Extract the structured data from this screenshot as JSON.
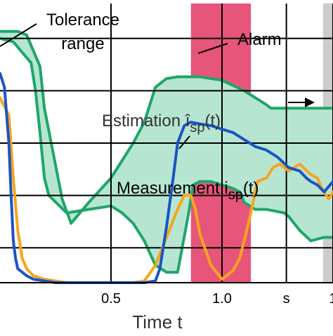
{
  "chart_data": {
    "type": "line",
    "title": "",
    "xlabel": "Time t",
    "ylabel": "",
    "xlim": [
      0.0,
      1.5
    ],
    "ylim": [
      0,
      8
    ],
    "x_ticks": [
      {
        "value": 0.5,
        "label": "0.5"
      },
      {
        "value": 1.0,
        "label": "1.0"
      },
      {
        "value": 1.29,
        "label": "s"
      },
      {
        "value": 1.5,
        "label": "1"
      }
    ],
    "grid": true,
    "highlights": [
      {
        "name": "alarm",
        "x0": 0.86,
        "x1": 1.13,
        "color": "#e8557a"
      },
      {
        "name": "gray-region",
        "x0": 1.455,
        "x1": 1.52,
        "color": "#cccccc"
      }
    ],
    "annotations": [
      {
        "name": "tolerance",
        "text": "Tolerance",
        "line2": "range"
      },
      {
        "name": "alarm",
        "text": "Alarm"
      },
      {
        "name": "estimation",
        "text": "Estimation î",
        "subscript": "sp",
        "suffix": "(t)"
      },
      {
        "name": "measurement",
        "text": "Measurement i",
        "subscript": "sp",
        "suffix": "(t)"
      }
    ],
    "tolerance_band": {
      "upper": {
        "x": [
          0.0,
          0.08,
          0.12,
          0.18,
          0.2,
          0.24,
          0.28,
          0.32,
          0.4,
          0.5,
          0.6,
          0.65,
          0.7,
          0.75,
          0.8,
          0.9,
          1.0,
          1.1,
          1.2,
          1.22,
          1.3,
          1.4,
          1.46,
          1.5
        ],
        "y": [
          7.2,
          7.2,
          7.1,
          6.2,
          5.0,
          3.7,
          2.4,
          1.7,
          2.3,
          3.0,
          4.0,
          4.6,
          5.6,
          5.85,
          5.9,
          5.9,
          5.8,
          5.5,
          5.1,
          5.0,
          5.0,
          5.0,
          5.0,
          5.0
        ]
      },
      "lower": {
        "x": [
          0.0,
          0.06,
          0.1,
          0.14,
          0.16,
          0.18,
          0.2,
          0.22,
          0.3,
          0.4,
          0.5,
          0.55,
          0.6,
          0.65,
          0.7,
          0.75,
          0.8,
          0.85,
          0.87,
          0.9,
          0.95,
          1.0,
          1.05,
          1.08,
          1.1,
          1.15,
          1.2,
          1.28,
          1.3,
          1.35,
          1.4,
          1.46,
          1.5
        ],
        "y": [
          7.0,
          6.9,
          6.6,
          6.3,
          5.5,
          4.3,
          3.0,
          2.5,
          2.0,
          2.1,
          2.2,
          2.0,
          1.7,
          1.2,
          0.5,
          0.3,
          0.3,
          2.0,
          2.8,
          2.9,
          2.9,
          2.8,
          2.7,
          2.6,
          2.3,
          2.1,
          2.1,
          2.0,
          1.9,
          1.5,
          1.2,
          1.3,
          1.3
        ]
      }
    },
    "series": [
      {
        "key": "estimation",
        "x": [
          0.0,
          0.02,
          0.04,
          0.05,
          0.06,
          0.07,
          0.08,
          0.1,
          0.12,
          0.15,
          0.2,
          0.25,
          0.3,
          0.35,
          0.4,
          0.45,
          0.5,
          0.55,
          0.6,
          0.65,
          0.7,
          0.72,
          0.75,
          0.78,
          0.8,
          0.83,
          0.86,
          0.9,
          0.95,
          1.0,
          1.05,
          1.1,
          1.15,
          1.2,
          1.25,
          1.3,
          1.35,
          1.38,
          1.4,
          1.43,
          1.46,
          1.5
        ],
        "y": [
          6.0,
          5.6,
          4.0,
          2.5,
          1.2,
          0.7,
          0.4,
          0.3,
          0.2,
          0.1,
          0.05,
          0.0,
          0.0,
          0.0,
          0.0,
          0.0,
          0.0,
          0.0,
          0.0,
          0.0,
          0.05,
          0.4,
          1.6,
          3.0,
          4.0,
          4.5,
          4.6,
          4.55,
          4.5,
          4.4,
          4.3,
          4.1,
          3.9,
          3.8,
          3.6,
          3.3,
          3.2,
          3.0,
          2.9,
          2.8,
          2.6,
          2.9
        ]
      },
      {
        "key": "measurement",
        "x": [
          0.0,
          0.04,
          0.06,
          0.08,
          0.1,
          0.12,
          0.15,
          0.2,
          0.25,
          0.3,
          0.35,
          0.4,
          0.45,
          0.5,
          0.55,
          0.6,
          0.65,
          0.7,
          0.75,
          0.8,
          0.83,
          0.86,
          0.88,
          0.9,
          0.95,
          1.0,
          1.05,
          1.08,
          1.1,
          1.13,
          1.16,
          1.2,
          1.23,
          1.26,
          1.28,
          1.3,
          1.35,
          1.4,
          1.43,
          1.45,
          1.48,
          1.5
        ],
        "y": [
          5.3,
          4.8,
          3.0,
          1.5,
          0.7,
          0.4,
          0.2,
          0.1,
          0.05,
          0.0,
          0.0,
          0.0,
          0.0,
          0.0,
          0.0,
          0.0,
          0.05,
          0.5,
          1.3,
          2.1,
          2.5,
          2.5,
          2.1,
          1.4,
          0.5,
          0.1,
          0.35,
          0.7,
          1.2,
          2.0,
          2.9,
          3.0,
          3.3,
          3.4,
          3.3,
          3.2,
          3.4,
          3.1,
          3.0,
          2.7,
          2.4,
          2.6
        ]
      }
    ],
    "colors": {
      "band_fill": "#b6e6d1",
      "band_line": "#1fa66a",
      "estimation": "#1c54c3",
      "measurement": "#f7a51c",
      "grid": "#000000",
      "axis": "#000000"
    }
  }
}
